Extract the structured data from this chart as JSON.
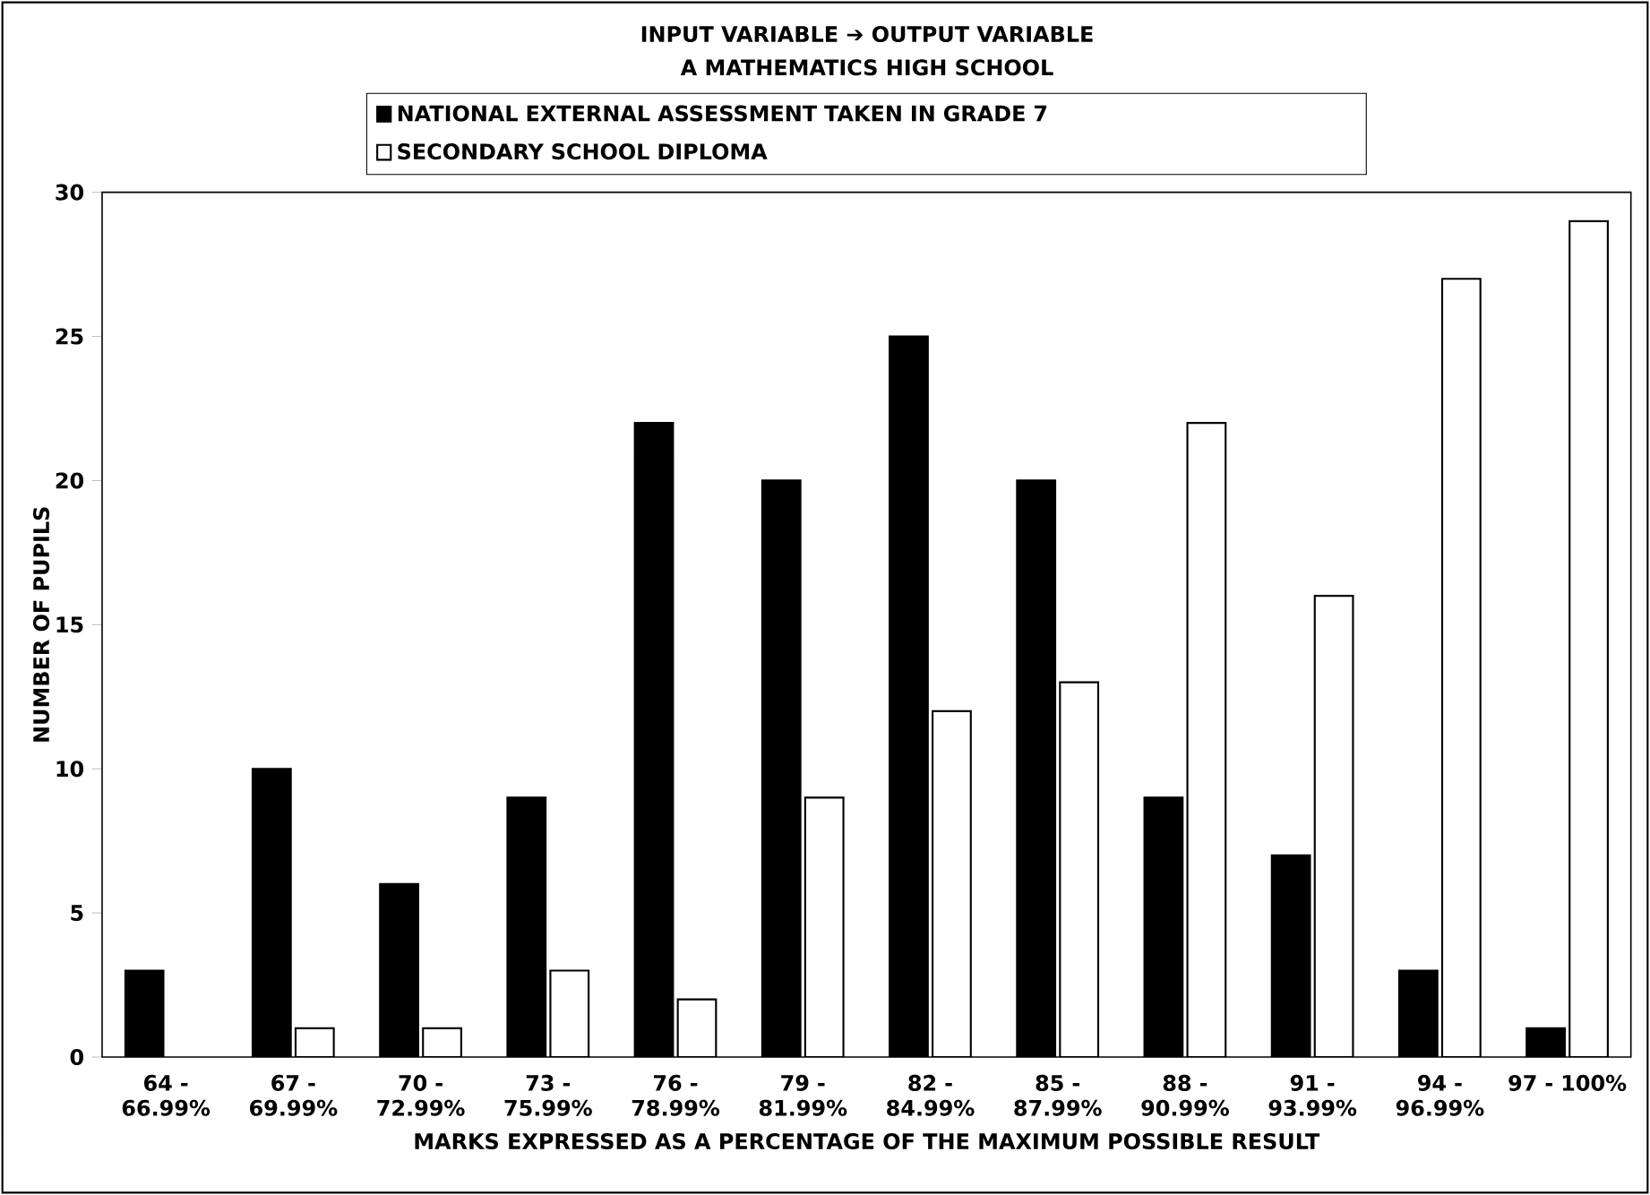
{
  "chart_data": {
    "type": "bar",
    "title": "INPUT VARIABLE ➔ OUTPUT VARIABLE",
    "subtitle": "A MATHEMATICS HIGH SCHOOL",
    "xlabel": "MARKS EXPRESSED AS A PERCENTAGE OF THE MAXIMUM POSSIBLE RESULT",
    "ylabel": "NUMBER OF PUPILS",
    "categories": [
      "64 - 66.99%",
      "67 - 69.99%",
      "70 - 72.99%",
      "73 - 75.99%",
      "76 - 78.99%",
      "79 - 81.99%",
      "82 - 84.99%",
      "85 - 87.99%",
      "88 - 90.99%",
      "91 - 93.99%",
      "94 - 96.99%",
      "97 - 100%"
    ],
    "series": [
      {
        "name": "NATIONAL EXTERNAL ASSESSMENT TAKEN IN GRADE 7",
        "color": "#000000",
        "values": [
          3,
          10,
          6,
          9,
          22,
          20,
          25,
          20,
          9,
          7,
          3,
          1
        ]
      },
      {
        "name": "SECONDARY SCHOOL DIPLOMA",
        "color": "#ffffff",
        "values": [
          null,
          1,
          1,
          3,
          2,
          9,
          12,
          13,
          22,
          16,
          27,
          29
        ]
      }
    ],
    "ylim": [
      0,
      30
    ],
    "yticks": [
      0,
      5,
      10,
      15,
      20,
      25,
      30
    ],
    "grid": false,
    "legend": "top"
  }
}
